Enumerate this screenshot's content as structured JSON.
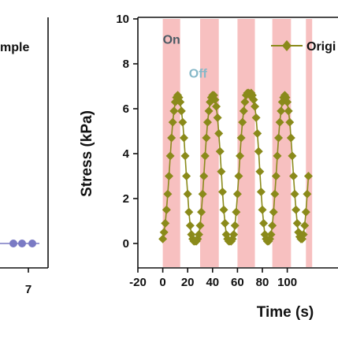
{
  "colors": {
    "series": "#8a8a1a",
    "stripe": "#f7c0c0",
    "left_markers": "#7a7ac4",
    "on_text": "#4a5a64",
    "off_text": "#86b8c8",
    "axis": "#111111"
  },
  "left_panel": {
    "legend_fragment": "mple",
    "x_tick": "7"
  },
  "chart_data": {
    "type": "line",
    "xlabel": "Time (s)",
    "ylabel": "Stress (kPa)",
    "xlim": [
      -20,
      120
    ],
    "ylim": [
      0,
      10
    ],
    "x_ticks": [
      "-20",
      "0",
      "20",
      "40",
      "60",
      "80",
      "100"
    ],
    "y_ticks": [
      "0",
      "2",
      "4",
      "6",
      "8",
      "10"
    ],
    "grid": false,
    "legend_placement": "top-right",
    "annotations": [
      {
        "text": "On",
        "x": 0,
        "y": 9.1
      },
      {
        "text": "Off",
        "x": 21,
        "y": 7.6
      }
    ],
    "on_intervals": [
      [
        0,
        14
      ],
      [
        30,
        45
      ],
      [
        60,
        74
      ],
      [
        88,
        103
      ],
      [
        115,
        120
      ]
    ],
    "series": [
      {
        "name": "Origi",
        "marker": "diamond",
        "x": [
          0,
          1,
          2,
          3,
          4,
          5,
          6,
          7,
          8,
          9,
          10,
          11,
          12,
          13,
          14,
          15,
          16,
          17,
          18,
          19,
          20,
          21,
          22,
          23,
          24,
          25,
          26,
          27,
          28,
          29,
          30,
          31,
          32,
          33,
          34,
          35,
          36,
          37,
          38,
          39,
          40,
          41,
          42,
          43,
          44,
          45,
          46,
          47,
          48,
          49,
          50,
          51,
          52,
          53,
          54,
          55,
          56,
          57,
          58,
          59,
          60,
          61,
          62,
          63,
          64,
          65,
          66,
          67,
          68,
          69,
          70,
          71,
          72,
          73,
          74,
          75,
          76,
          77,
          78,
          79,
          80,
          81,
          82,
          83,
          84,
          85,
          86,
          87,
          88,
          89,
          90,
          91,
          92,
          93,
          94,
          95,
          96,
          97,
          98,
          99,
          100,
          101,
          102,
          103,
          104,
          105,
          106,
          107,
          108,
          109,
          110,
          111,
          112,
          113,
          114,
          115,
          116,
          117
        ],
        "y": [
          0.2,
          0.5,
          0.9,
          1.5,
          2.2,
          3.0,
          3.9,
          4.7,
          5.4,
          5.9,
          6.3,
          6.5,
          6.6,
          6.5,
          6.3,
          5.9,
          5.4,
          4.7,
          3.9,
          3.0,
          2.2,
          1.4,
          0.8,
          0.4,
          0.2,
          0.1,
          0.1,
          0.1,
          0.2,
          0.4,
          0.8,
          1.4,
          2.2,
          3.0,
          3.9,
          4.7,
          5.4,
          5.9,
          6.3,
          6.5,
          6.6,
          6.6,
          6.4,
          6.1,
          5.6,
          4.9,
          4.1,
          3.2,
          2.3,
          1.5,
          0.9,
          0.4,
          0.2,
          0.1,
          0.1,
          0.1,
          0.2,
          0.4,
          0.8,
          1.4,
          2.2,
          3.0,
          3.9,
          4.7,
          5.4,
          5.9,
          6.3,
          6.6,
          6.7,
          6.7,
          6.6,
          6.7,
          6.6,
          6.4,
          6.1,
          5.6,
          4.9,
          4.1,
          3.2,
          2.3,
          1.5,
          0.9,
          0.4,
          0.2,
          0.1,
          0.1,
          0.2,
          0.4,
          0.8,
          1.4,
          2.2,
          3.0,
          3.9,
          4.7,
          5.4,
          5.9,
          6.3,
          6.5,
          6.6,
          6.5,
          6.3,
          5.9,
          5.4,
          4.7,
          3.9,
          3.0,
          2.2,
          1.5,
          0.9,
          0.5,
          0.3,
          0.2,
          0.2,
          0.4,
          0.8,
          1.4,
          2.2,
          3.0
        ]
      }
    ]
  }
}
